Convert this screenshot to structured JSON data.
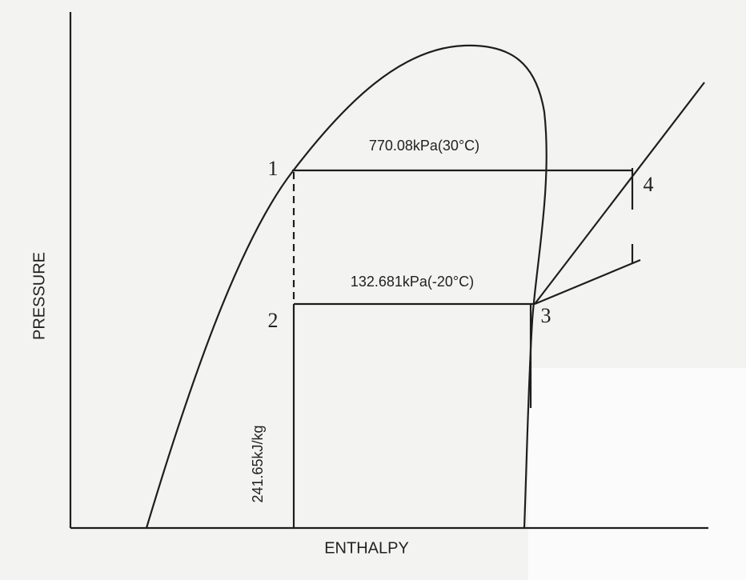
{
  "axes": {
    "y_label": "PRESSURE",
    "x_label": "ENTHALPY"
  },
  "lines": {
    "high_pressure": "770.08kPa(30°C)",
    "low_pressure": "132.681kPa(-20°C)",
    "enthalpy": "241.65kJ/kg"
  },
  "points": [
    "1",
    "2",
    "3",
    "4"
  ]
}
